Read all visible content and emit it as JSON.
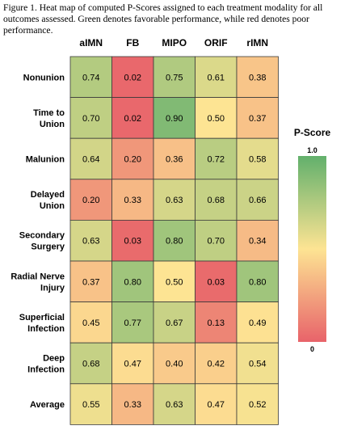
{
  "caption": "Figure 1. Heat map of computed P-Scores assigned to each treatment modality for all outcomes assessed. Green denotes favorable performance, while red denotes poor performance.",
  "chart_data": {
    "type": "heatmap",
    "columns": [
      "aIMN",
      "FB",
      "MIPO",
      "ORIF",
      "rIMN"
    ],
    "rows": [
      {
        "label": [
          "Nonunion"
        ],
        "values": [
          "0.74",
          "0.02",
          "0.75",
          "0.61",
          "0.38"
        ]
      },
      {
        "label": [
          "Time to",
          "Union"
        ],
        "values": [
          "0.70",
          "0.02",
          "0.90",
          "0.50",
          "0.37"
        ]
      },
      {
        "label": [
          "Malunion"
        ],
        "values": [
          "0.64",
          "0.20",
          "0.36",
          "0.72",
          "0.58"
        ]
      },
      {
        "label": [
          "Delayed",
          "Union"
        ],
        "values": [
          "0.20",
          "0.33",
          "0.63",
          "0.68",
          "0.66"
        ]
      },
      {
        "label": [
          "Secondary",
          "Surgery"
        ],
        "values": [
          "0.63",
          "0.03",
          "0.80",
          "0.70",
          "0.34"
        ]
      },
      {
        "label": [
          "Radial Nerve",
          "Injury"
        ],
        "values": [
          "0.37",
          "0.80",
          "0.50",
          "0.03",
          "0.80"
        ]
      },
      {
        "label": [
          "Superficial",
          "Infection"
        ],
        "values": [
          "0.45",
          "0.77",
          "0.67",
          "0.13",
          "0.49"
        ]
      },
      {
        "label": [
          "Deep",
          "Infection"
        ],
        "values": [
          "0.68",
          "0.47",
          "0.40",
          "0.42",
          "0.54"
        ]
      },
      {
        "label": [
          "Average"
        ],
        "values": [
          "0.55",
          "0.33",
          "0.63",
          "0.47",
          "0.52"
        ]
      }
    ],
    "colorbar": {
      "title": "P-Score",
      "max_label": "1.0",
      "min_label": "0",
      "range": [
        0,
        1
      ],
      "colors": {
        "low": "#e8636a",
        "mid": "#fde493",
        "high": "#62b06c"
      }
    }
  }
}
